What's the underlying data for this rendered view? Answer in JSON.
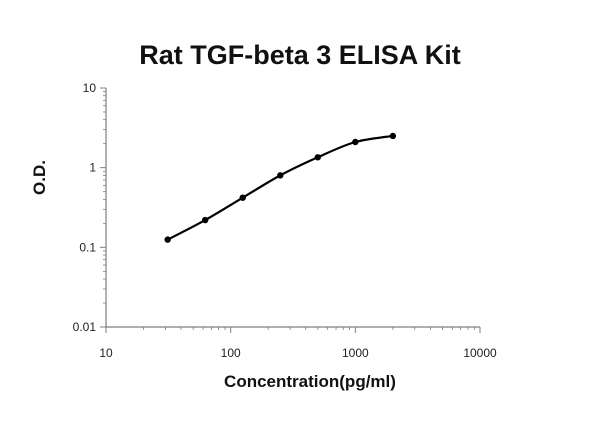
{
  "chart_data": {
    "type": "line",
    "title": "Rat TGF-beta 3 ELISA Kit",
    "xlabel": "Concentration(pg/ml)",
    "ylabel": "O.D.",
    "x_scale": "log",
    "y_scale": "log",
    "xlim": [
      10,
      10000
    ],
    "ylim": [
      0.01,
      10
    ],
    "x_ticks": [
      "10",
      "100",
      "1000",
      "10000"
    ],
    "y_ticks": [
      "0.01",
      "0.1",
      "1",
      "10"
    ],
    "grid": false,
    "series": [
      {
        "x": [
          31.25,
          62.5,
          125,
          250,
          500,
          1000,
          2000
        ],
        "y": [
          0.125,
          0.22,
          0.42,
          0.8,
          1.35,
          2.1,
          2.5
        ]
      }
    ],
    "colors": {
      "line": "#000000",
      "axis": "#7f7f7f"
    }
  }
}
